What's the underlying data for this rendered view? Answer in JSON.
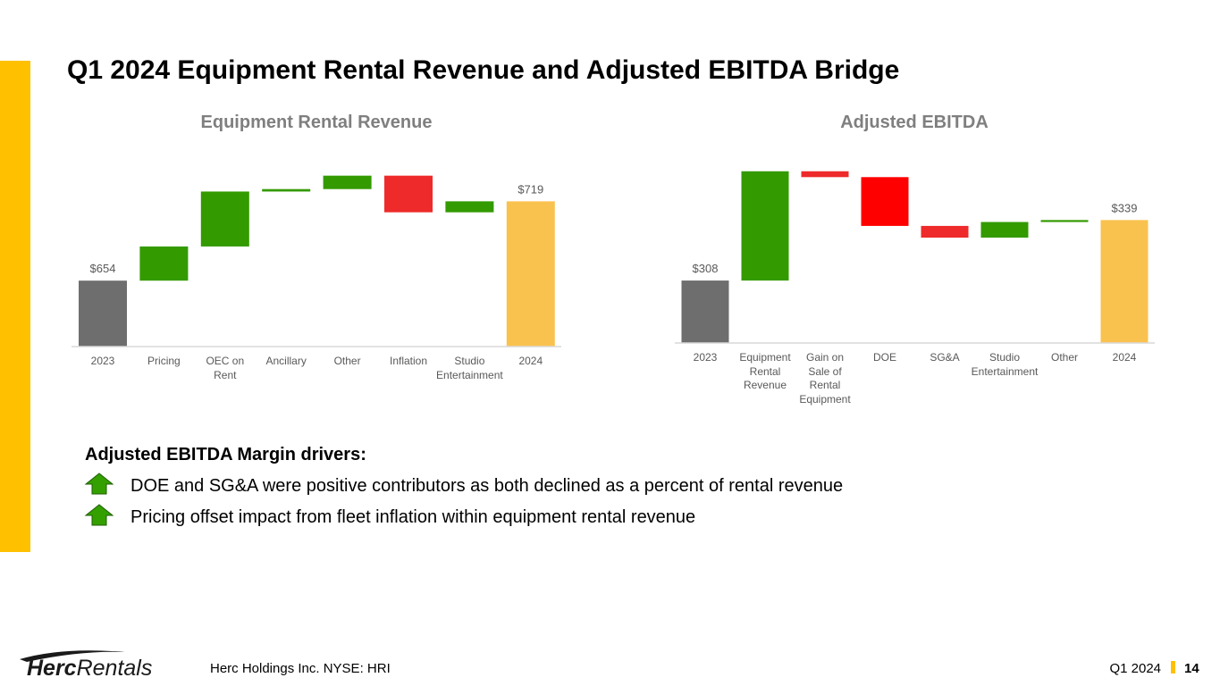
{
  "title": "Q1 2024 Equipment Rental Revenue and Adjusted EBITDA Bridge",
  "chart_data": [
    {
      "type": "waterfall",
      "title": "Equipment Rental Revenue",
      "categories": [
        "2023",
        "Pricing",
        "OEC on\nRent",
        "Ancillary",
        "Other",
        "Inflation",
        "Studio\nEntertainment",
        "2024"
      ],
      "values": [
        654,
        28,
        45,
        2,
        11,
        -30,
        9,
        719
      ],
      "value_labels": [
        "$654",
        null,
        null,
        null,
        null,
        null,
        null,
        "$719"
      ],
      "colors": [
        "#6e6e6e",
        "#339a00",
        "#339a00",
        "#339a00",
        "#339a00",
        "#ee2a2a",
        "#339a00",
        "#f9c24f"
      ],
      "ylim": [
        600,
        750
      ]
    },
    {
      "type": "waterfall",
      "title": "Adjusted EBITDA",
      "categories": [
        "2023",
        "Equipment\nRental\nRevenue",
        "Gain on\nSale of\nRental\nEquipment",
        "DOE",
        "SG&A",
        "Studio\nEntertainment",
        "Other",
        "2024"
      ],
      "values": [
        308,
        56,
        -3,
        -25,
        -6,
        8,
        1,
        339
      ],
      "value_labels": [
        "$308",
        null,
        null,
        null,
        null,
        null,
        null,
        "$339"
      ],
      "colors": [
        "#6e6e6e",
        "#339a00",
        "#ee2a2a",
        "#ff0000",
        "#ee2a2a",
        "#339a00",
        "#339a00",
        "#f9c24f"
      ],
      "ylim": [
        276,
        368
      ]
    }
  ],
  "bullets": {
    "heading": "Adjusted EBITDA Margin drivers:",
    "items": [
      "DOE and SG&A were positive contributors as both declined as a percent of rental revenue",
      "Pricing offset impact from fleet inflation within equipment rental revenue"
    ]
  },
  "footer": {
    "logo_bold": "Herc",
    "logo_light": "Rentals",
    "company": "Herc Holdings Inc.  NYSE: HRI",
    "period": "Q1 2024",
    "page": 14
  }
}
